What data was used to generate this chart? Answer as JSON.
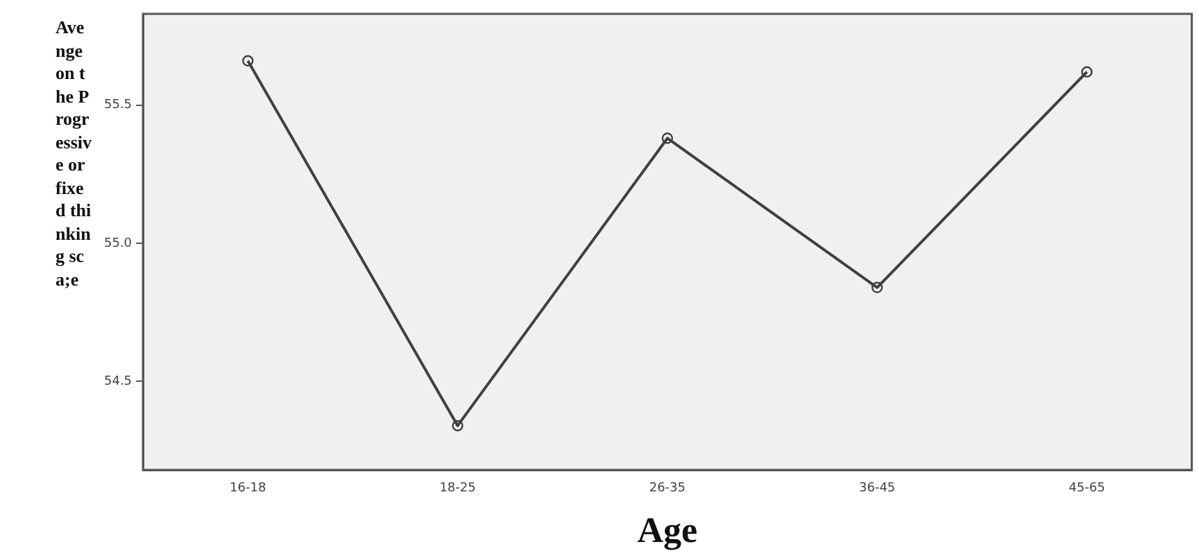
{
  "chart_data": {
    "type": "line",
    "xlabel": "Age",
    "ylabel": "Avenge on the Progressive or fixed thinking sca;e",
    "categories": [
      "16-18",
      "18-25",
      "26-35",
      "36-45",
      "45-65"
    ],
    "series": [
      {
        "color": "#404040",
        "values": [
          55.66,
          54.34,
          55.38,
          54.84,
          55.62
        ]
      }
    ],
    "ylim": [
      54.18,
      55.83
    ],
    "yticks": [
      {
        "value": 54.5,
        "label": "54.5"
      },
      {
        "value": 55,
        "label": "55.0"
      },
      {
        "value": 55.5,
        "label": "55.5"
      }
    ],
    "grid": false,
    "legend": false,
    "marker": "circle",
    "line_style": "solid"
  }
}
